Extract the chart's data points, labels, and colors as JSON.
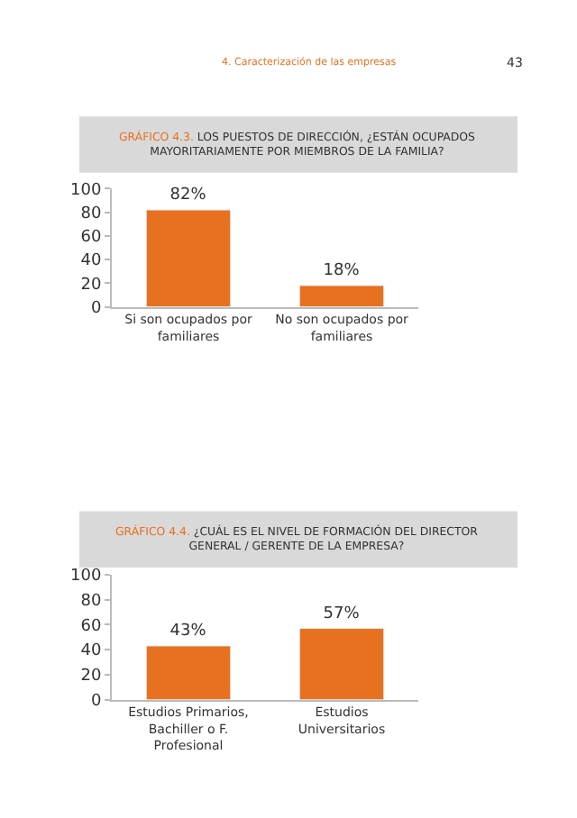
{
  "chart_data": [
    {
      "type": "bar",
      "title": "GRÁFICO 4.3. LOS PUESTOS DE DIRECCIÓN, ¿ESTÁN OCUPADOS MAYORITARIAMENTE POR MIEMBROS DE LA FAMILIA?",
      "annotations": [
        "4. Caracterización de las empresas",
        "43"
      ],
      "categories": [
        "Si son ocupados por familiares",
        "No son ocupados por familiares"
      ],
      "values": [
        82,
        18
      ],
      "value_labels": [
        "82%",
        "18%"
      ],
      "color": "#e8711f",
      "ylim": [
        0,
        100
      ],
      "yticks": [
        0,
        20,
        40,
        60,
        80,
        100
      ]
    },
    {
      "type": "bar",
      "title": "GRÁFICO 4.4. ¿CUÁL ES EL NIVEL DE FORMACIÓN DEL DIRECTOR GENERAL / GERENTE DE LA EMPRESA?",
      "categories": [
        "Estudios Primarios, Bachiller o F. Profesional",
        "Estudios Universitarios"
      ],
      "values": [
        43,
        57
      ],
      "value_labels": [
        "43%",
        "57%"
      ],
      "color": "#e8711f",
      "ylim": [
        0,
        100
      ],
      "yticks": [
        0,
        20,
        40,
        60,
        80,
        100
      ]
    }
  ]
}
